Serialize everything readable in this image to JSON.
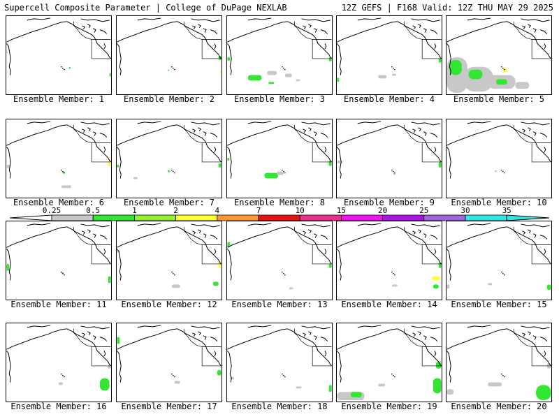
{
  "header": {
    "left": "Supercell Composite Parameter | College of DuPage NEXLAB",
    "right": "12Z GEFS | F168 Valid: 12Z THU MAY 29 2025"
  },
  "colors": {
    "fill": [
      "#c8c8c8",
      "#32e632",
      "#96f032",
      "#ffff32",
      "#ff9632",
      "#e61414",
      "#e6328c",
      "#f014f0",
      "#aa14e6",
      "#a064dc",
      "#32e6e6"
    ]
  },
  "colorbar": {
    "ticks": [
      "0.25",
      "0.5",
      "1",
      "2",
      "4",
      "7",
      "10",
      "15",
      "20",
      "25",
      "30",
      "35"
    ]
  },
  "panels": [
    {
      "label": "Ensemble Member: 1",
      "blobs": [
        {
          "x": 91,
          "y": 74,
          "w": 2,
          "h": 3,
          "c": 1
        },
        {
          "x": 150,
          "y": 83,
          "w": 2,
          "h": 5,
          "c": 1
        },
        {
          "x": 0,
          "y": 52,
          "w": 2,
          "h": 2,
          "c": 0
        }
      ]
    },
    {
      "label": "Ensemble Member: 2",
      "blobs": [
        {
          "x": 148,
          "y": 58,
          "w": 4,
          "h": 6,
          "c": 1
        },
        {
          "x": 74,
          "y": 78,
          "w": 2,
          "h": 2,
          "c": 1
        },
        {
          "x": 150,
          "y": 80,
          "w": 2,
          "h": 3,
          "c": 3
        }
      ]
    },
    {
      "label": "Ensemble Member: 3",
      "blobs": [
        {
          "x": 30,
          "y": 86,
          "w": 20,
          "h": 8,
          "c": 1
        },
        {
          "x": 58,
          "y": 80,
          "w": 14,
          "h": 6,
          "c": 0
        },
        {
          "x": 84,
          "y": 84,
          "w": 10,
          "h": 5,
          "c": 0
        },
        {
          "x": 148,
          "y": 60,
          "w": 4,
          "h": 6,
          "c": 1
        },
        {
          "x": 0,
          "y": 60,
          "w": 4,
          "h": 5,
          "c": 1
        },
        {
          "x": 60,
          "y": 96,
          "w": 8,
          "h": 3,
          "c": 1
        },
        {
          "x": 100,
          "y": 92,
          "w": 6,
          "h": 3,
          "c": 0
        }
      ]
    },
    {
      "label": "Ensemble Member: 4",
      "blobs": [
        {
          "x": 60,
          "y": 86,
          "w": 12,
          "h": 5,
          "c": 0
        },
        {
          "x": 148,
          "y": 62,
          "w": 4,
          "h": 6,
          "c": 1
        },
        {
          "x": 0,
          "y": 90,
          "w": 3,
          "h": 6,
          "c": 1
        },
        {
          "x": 80,
          "y": 84,
          "w": 6,
          "h": 3,
          "c": 0
        }
      ]
    },
    {
      "label": "Ensemble Member: 5",
      "blobs": [
        {
          "x": 0,
          "y": 60,
          "w": 30,
          "h": 52,
          "c": 0
        },
        {
          "x": 4,
          "y": 64,
          "w": 18,
          "h": 22,
          "c": 1
        },
        {
          "x": 24,
          "y": 74,
          "w": 44,
          "h": 36,
          "c": 0
        },
        {
          "x": 32,
          "y": 78,
          "w": 20,
          "h": 14,
          "c": 1
        },
        {
          "x": 60,
          "y": 86,
          "w": 40,
          "h": 20,
          "c": 0
        },
        {
          "x": 72,
          "y": 92,
          "w": 16,
          "h": 8,
          "c": 1
        },
        {
          "x": 100,
          "y": 96,
          "w": 20,
          "h": 10,
          "c": 0
        },
        {
          "x": 82,
          "y": 76,
          "w": 6,
          "h": 6,
          "c": 3
        }
      ]
    },
    {
      "label": "Ensemble Member: 6",
      "blobs": [
        {
          "x": 148,
          "y": 62,
          "w": 4,
          "h": 6,
          "c": 3
        },
        {
          "x": 80,
          "y": 96,
          "w": 14,
          "h": 4,
          "c": 0
        },
        {
          "x": 82,
          "y": 76,
          "w": 3,
          "h": 3,
          "c": 1
        },
        {
          "x": 0,
          "y": 66,
          "w": 6,
          "h": 5,
          "c": 0
        }
      ]
    },
    {
      "label": "Ensemble Member: 7",
      "blobs": [
        {
          "x": 74,
          "y": 74,
          "w": 3,
          "h": 3,
          "c": 1
        },
        {
          "x": 0,
          "y": 66,
          "w": 3,
          "h": 4,
          "c": 1
        },
        {
          "x": 24,
          "y": 84,
          "w": 6,
          "h": 3,
          "c": 0
        },
        {
          "x": 148,
          "y": 64,
          "w": 4,
          "h": 6,
          "c": 1
        }
      ]
    },
    {
      "label": "Ensemble Member: 8",
      "blobs": [
        {
          "x": 54,
          "y": 78,
          "w": 20,
          "h": 8,
          "c": 1
        },
        {
          "x": 72,
          "y": 76,
          "w": 10,
          "h": 5,
          "c": 0
        },
        {
          "x": 148,
          "y": 60,
          "w": 4,
          "h": 8,
          "c": 1
        },
        {
          "x": 0,
          "y": 56,
          "w": 3,
          "h": 4,
          "c": 1
        }
      ]
    },
    {
      "label": "Ensemble Member: 9",
      "blobs": [
        {
          "x": 148,
          "y": 62,
          "w": 4,
          "h": 8,
          "c": 1
        },
        {
          "x": 0,
          "y": 60,
          "w": 8,
          "h": 4,
          "c": 0
        },
        {
          "x": 82,
          "y": 78,
          "w": 3,
          "h": 3,
          "c": 0
        }
      ]
    },
    {
      "label": "Ensemble Member: 10",
      "blobs": [
        {
          "x": 70,
          "y": 74,
          "w": 3,
          "h": 3,
          "c": 0
        }
      ]
    },
    {
      "label": "Ensemble Member: 11",
      "blobs": [
        {
          "x": 0,
          "y": 62,
          "w": 4,
          "h": 10,
          "c": 1
        },
        {
          "x": 148,
          "y": 80,
          "w": 4,
          "h": 10,
          "c": 1
        },
        {
          "x": 80,
          "y": 74,
          "w": 4,
          "h": 3,
          "c": 0
        }
      ]
    },
    {
      "label": "Ensemble Member: 12",
      "blobs": [
        {
          "x": 80,
          "y": 92,
          "w": 12,
          "h": 5,
          "c": 0
        },
        {
          "x": 148,
          "y": 58,
          "w": 4,
          "h": 10,
          "c": 3
        },
        {
          "x": 140,
          "y": 88,
          "w": 8,
          "h": 6,
          "c": 1
        },
        {
          "x": 0,
          "y": 42,
          "w": 4,
          "h": 4,
          "c": 0
        }
      ]
    },
    {
      "label": "Ensemble Member: 13",
      "blobs": [
        {
          "x": 0,
          "y": 30,
          "w": 4,
          "h": 8,
          "c": 1
        },
        {
          "x": 148,
          "y": 62,
          "w": 4,
          "h": 6,
          "c": 1
        },
        {
          "x": 90,
          "y": 96,
          "w": 6,
          "h": 3,
          "c": 0
        }
      ]
    },
    {
      "label": "Ensemble Member: 14",
      "blobs": [
        {
          "x": 148,
          "y": 60,
          "w": 4,
          "h": 8,
          "c": 1
        },
        {
          "x": 138,
          "y": 80,
          "w": 12,
          "h": 6,
          "c": 3
        },
        {
          "x": 80,
          "y": 92,
          "w": 8,
          "h": 3,
          "c": 0
        },
        {
          "x": 140,
          "y": 92,
          "w": 8,
          "h": 6,
          "c": 1
        }
      ]
    },
    {
      "label": "Ensemble Member: 15",
      "blobs": [
        {
          "x": 146,
          "y": 92,
          "w": 6,
          "h": 8,
          "c": 1
        },
        {
          "x": 0,
          "y": 92,
          "w": 4,
          "h": 6,
          "c": 0
        },
        {
          "x": 60,
          "y": 90,
          "w": 6,
          "h": 3,
          "c": 0
        }
      ]
    },
    {
      "label": "Ensemble Member: 16",
      "blobs": [
        {
          "x": 136,
          "y": 80,
          "w": 14,
          "h": 18,
          "c": 1
        },
        {
          "x": 76,
          "y": 86,
          "w": 6,
          "h": 4,
          "c": 0
        },
        {
          "x": 148,
          "y": 60,
          "w": 4,
          "h": 6,
          "c": 0
        }
      ]
    },
    {
      "label": "Ensemble Member: 17",
      "blobs": [
        {
          "x": 0,
          "y": 20,
          "w": 4,
          "h": 10,
          "c": 1
        },
        {
          "x": 146,
          "y": 68,
          "w": 6,
          "h": 8,
          "c": 1
        },
        {
          "x": 84,
          "y": 84,
          "w": 8,
          "h": 4,
          "c": 0
        }
      ]
    },
    {
      "label": "Ensemble Member: 18",
      "blobs": [
        {
          "x": 148,
          "y": 90,
          "w": 4,
          "h": 10,
          "c": 1
        },
        {
          "x": 4,
          "y": 78,
          "w": 6,
          "h": 4,
          "c": 0
        },
        {
          "x": 100,
          "y": 92,
          "w": 8,
          "h": 3,
          "c": 0
        }
      ]
    },
    {
      "label": "Ensemble Member: 19",
      "blobs": [
        {
          "x": 0,
          "y": 100,
          "w": 40,
          "h": 12,
          "c": 0
        },
        {
          "x": 20,
          "y": 100,
          "w": 16,
          "h": 8,
          "c": 1
        },
        {
          "x": 140,
          "y": 80,
          "w": 12,
          "h": 22,
          "c": 1
        },
        {
          "x": 144,
          "y": 56,
          "w": 8,
          "h": 10,
          "c": 1
        },
        {
          "x": 60,
          "y": 88,
          "w": 10,
          "h": 4,
          "c": 0
        }
      ]
    },
    {
      "label": "Ensemble Member: 20",
      "blobs": [
        {
          "x": 130,
          "y": 90,
          "w": 22,
          "h": 22,
          "c": 1
        },
        {
          "x": 60,
          "y": 86,
          "w": 20,
          "h": 6,
          "c": 0
        },
        {
          "x": 146,
          "y": 58,
          "w": 6,
          "h": 8,
          "c": 0
        },
        {
          "x": 0,
          "y": 96,
          "w": 10,
          "h": 8,
          "c": 0
        }
      ]
    }
  ]
}
